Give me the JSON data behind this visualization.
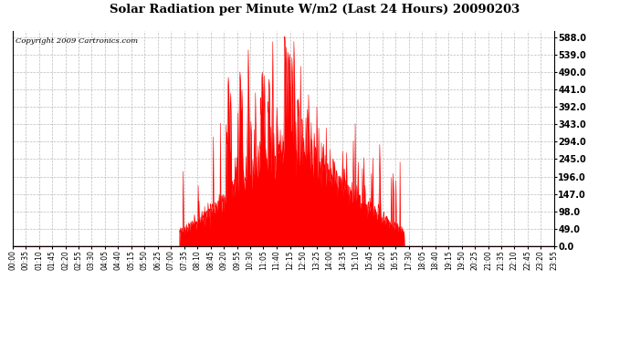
{
  "title": "Solar Radiation per Minute W/m2 (Last 24 Hours) 20090203",
  "copyright": "Copyright 2009 Cartronics.com",
  "bg_color": "#ffffff",
  "plot_bg_color": "#ffffff",
  "bar_color": "#ff0000",
  "grid_color": "#bbbbbb",
  "y_ticks": [
    0.0,
    49.0,
    98.0,
    147.0,
    196.0,
    245.0,
    294.0,
    343.0,
    392.0,
    441.0,
    490.0,
    539.0,
    588.0
  ],
  "y_max": 606,
  "x_tick_labels": [
    "00:00",
    "00:35",
    "01:10",
    "01:45",
    "02:20",
    "02:55",
    "03:30",
    "04:05",
    "04:40",
    "05:15",
    "05:50",
    "06:25",
    "07:00",
    "07:35",
    "08:10",
    "08:45",
    "09:20",
    "09:55",
    "10:30",
    "11:05",
    "11:40",
    "12:15",
    "12:50",
    "13:25",
    "14:00",
    "14:35",
    "15:10",
    "15:45",
    "16:20",
    "16:55",
    "17:30",
    "18:05",
    "18:40",
    "19:15",
    "19:50",
    "20:25",
    "21:00",
    "21:35",
    "22:10",
    "22:45",
    "23:20",
    "23:55"
  ]
}
